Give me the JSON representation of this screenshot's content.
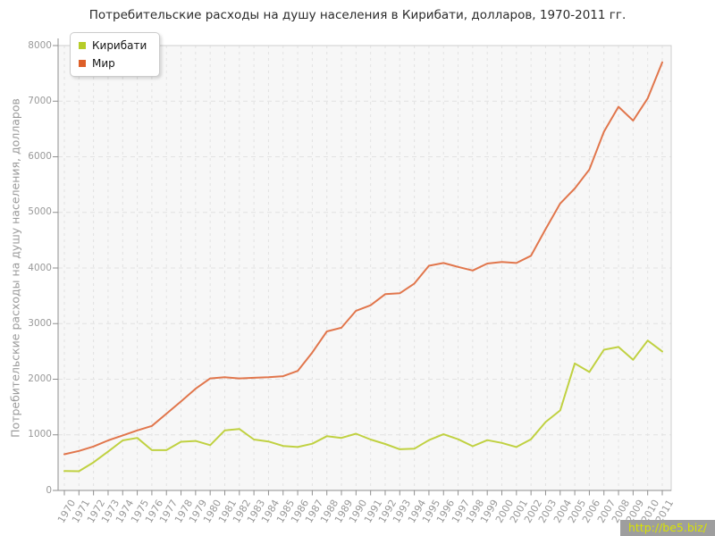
{
  "title": "Потребительские расходы на душу населения в Кирибати, долларов, 1970-2011 гг.",
  "watermark": {
    "text": "http://be5.biz/"
  },
  "legend": {
    "items": [
      {
        "label": "Кирибати",
        "color": "#b6cc28"
      },
      {
        "label": "Мир",
        "color": "#dd5f28"
      }
    ]
  },
  "chart_data": {
    "type": "line",
    "title": "Потребительские расходы на душу населения в Кирибати, долларов, 1970-2011 гг.",
    "xlabel": "",
    "ylabel": "Потребительские расходы на душу населения, долларов",
    "x": [
      1970,
      1971,
      1972,
      1973,
      1974,
      1975,
      1976,
      1977,
      1978,
      1979,
      1980,
      1981,
      1982,
      1983,
      1984,
      1985,
      1986,
      1987,
      1988,
      1989,
      1990,
      1991,
      1992,
      1993,
      1994,
      1995,
      1996,
      1997,
      1998,
      1999,
      2000,
      2001,
      2002,
      2003,
      2004,
      2005,
      2006,
      2007,
      2008,
      2009,
      2010,
      2011
    ],
    "series": [
      {
        "name": "Кирибати",
        "color": "#c0d141",
        "values": [
          350,
          345,
          505,
          700,
          900,
          945,
          725,
          725,
          875,
          890,
          815,
          1080,
          1105,
          915,
          880,
          800,
          780,
          840,
          975,
          945,
          1020,
          915,
          835,
          740,
          750,
          905,
          1010,
          920,
          795,
          905,
          855,
          780,
          920,
          1230,
          1440,
          2285,
          2130,
          2530,
          2580,
          2350,
          2695,
          2500
        ]
      },
      {
        "name": "Мир",
        "color": "#e1764c",
        "values": [
          650,
          710,
          790,
          900,
          990,
          1080,
          1160,
          1380,
          1600,
          1830,
          2015,
          2035,
          2015,
          2025,
          2035,
          2055,
          2150,
          2480,
          2860,
          2925,
          3230,
          3330,
          3530,
          3545,
          3720,
          4040,
          4090,
          4020,
          3955,
          4080,
          4110,
          4090,
          4220,
          4700,
          5160,
          5430,
          5770,
          6450,
          6900,
          6650,
          7050,
          7700
        ]
      }
    ],
    "ylim": [
      0,
      8000
    ],
    "yticks": [
      0,
      1000,
      2000,
      3000,
      4000,
      5000,
      6000,
      7000,
      8000
    ],
    "grid": true,
    "legend_position": "top-left"
  }
}
